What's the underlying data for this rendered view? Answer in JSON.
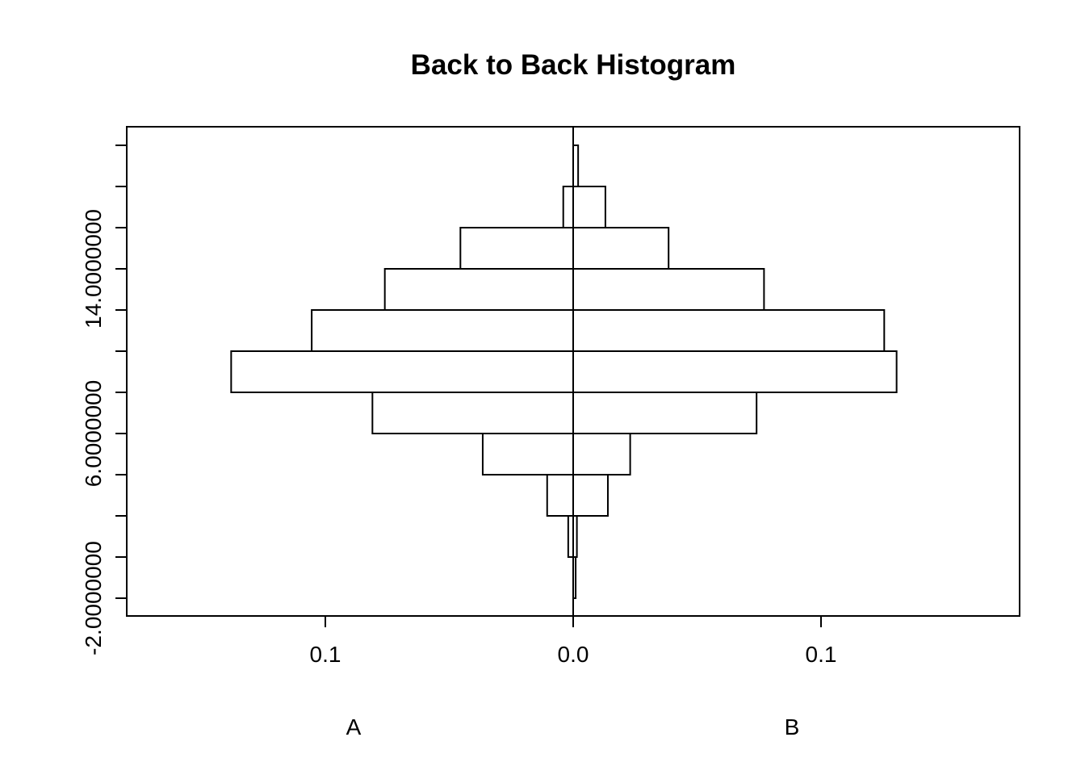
{
  "chart_data": {
    "type": "bar",
    "orientation": "horizontal-back-to-back",
    "title": "Back to Back Histogram",
    "xlabel": "",
    "ylabel": "",
    "x_ticks": [
      {
        "value": -0.1,
        "label": "0.1"
      },
      {
        "value": 0.0,
        "label": "0.0"
      },
      {
        "value": 0.1,
        "label": "0.1"
      }
    ],
    "xlim": [
      -0.18,
      0.18
    ],
    "y_ticks": [
      {
        "value": -2,
        "label": "-2.0000000"
      },
      {
        "value": 6,
        "label": "6.0000000"
      },
      {
        "value": 14,
        "label": "14.0000000"
      }
    ],
    "ylim": [
      -4,
      20
    ],
    "bin_edges": [
      -2,
      0,
      2,
      4,
      6,
      8,
      10,
      12,
      14,
      16,
      18,
      20
    ],
    "series": [
      {
        "name": "A",
        "side": "left",
        "values": [
          0.0,
          0.002,
          0.0105,
          0.0365,
          0.081,
          0.138,
          0.1055,
          0.076,
          0.0455,
          0.004,
          0.0
        ]
      },
      {
        "name": "B",
        "side": "right",
        "values": [
          0.001,
          0.0015,
          0.014,
          0.023,
          0.074,
          0.1305,
          0.1255,
          0.077,
          0.0385,
          0.013,
          0.002
        ]
      }
    ],
    "grid": false,
    "legend": "none"
  },
  "group_labels": {
    "left": "A",
    "right": "B"
  },
  "colors": {
    "stroke": "#000000",
    "background": "#ffffff",
    "bar_fill": "#ffffff"
  }
}
